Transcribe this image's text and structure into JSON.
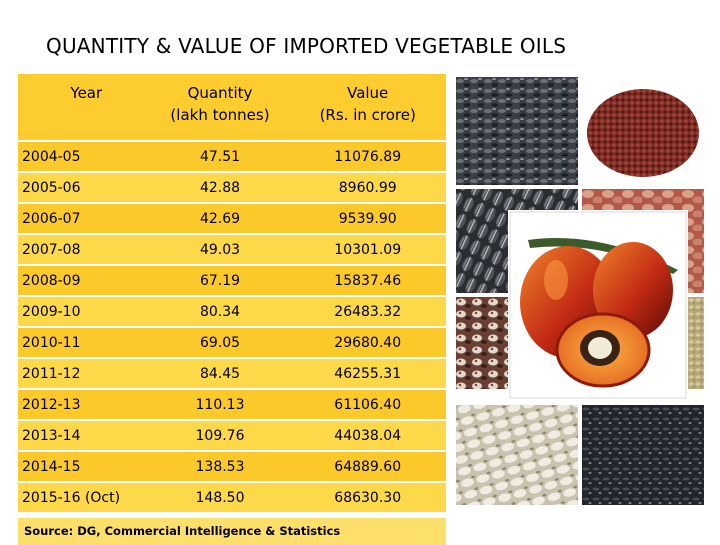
{
  "slide": {
    "title": "QUANTITY & VALUE OF IMPORTED VEGETABLE OILS"
  },
  "table": {
    "headers": {
      "year": "Year",
      "quantity_line1": "Quantity",
      "quantity_line2": "(lakh tonnes)",
      "value_line1": "Value",
      "value_line2": "(Rs. in crore)"
    },
    "rows": [
      {
        "year": "2004-05",
        "quantity": "47.51",
        "value": "11076.89"
      },
      {
        "year": "2005-06",
        "quantity": "42.88",
        "value": "8960.99"
      },
      {
        "year": "2006-07",
        "quantity": "42.69",
        "value": "9539.90"
      },
      {
        "year": "2007-08",
        "quantity": "49.03",
        "value": "10301.09"
      },
      {
        "year": "2008-09",
        "quantity": "67.19",
        "value": "15837.46"
      },
      {
        "year": "2009-10",
        "quantity": "80.34",
        "value": "26483.32"
      },
      {
        "year": "2010-11",
        "quantity": "69.05",
        "value": "29680.40"
      },
      {
        "year": "2011-12",
        "quantity": "84.45",
        "value": "46255.31"
      },
      {
        "year": "2012-13",
        "quantity": "110.13",
        "value": "61106.40"
      },
      {
        "year": "2013-14",
        "quantity": "109.76",
        "value": "44038.04"
      },
      {
        "year": "2014-15",
        "quantity": "138.53",
        "value": "64889.60"
      },
      {
        "year": "2015-16 (Oct)",
        "quantity": "148.50",
        "value": "68630.30"
      }
    ]
  },
  "source": "Source: DG, Commercial Intelligence & Statistics",
  "images": {
    "nigella": "black-seeds-image",
    "mustard": "mustard-seeds-image",
    "sunflower": "sunflower-seeds-image",
    "groundnut": "groundnut-image",
    "palm": "oil-palm-fruit-image",
    "castor": "castor-seeds-image",
    "sesame": "sesame-seeds-image",
    "safflower": "safflower-seeds-image",
    "niger": "niger-seeds-image"
  },
  "colors": {
    "header_bg": "#fdcd2f",
    "row_odd": "#fcc92b",
    "row_even": "#fdd848",
    "source_bg": "#fde06c"
  }
}
